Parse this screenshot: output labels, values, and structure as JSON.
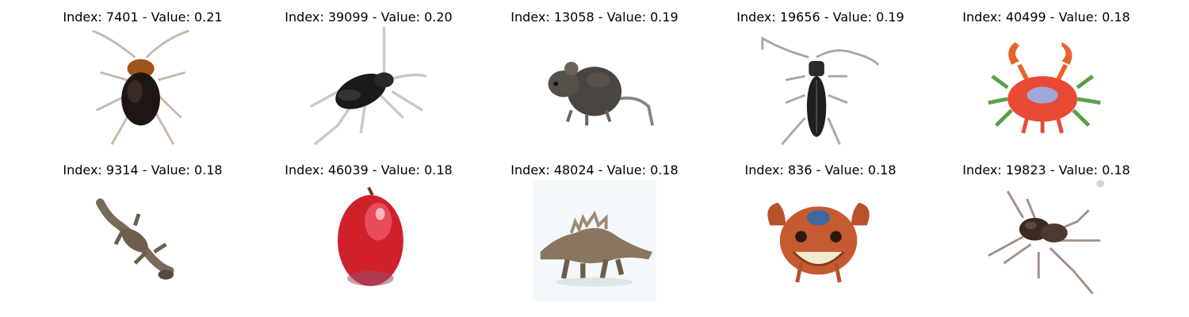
{
  "panels": [
    {
      "title": "Index: 7401 - Value: 0.21",
      "icon": "cockroach-icon"
    },
    {
      "title": "Index: 39099 - Value: 0.20",
      "icon": "beetle-icon"
    },
    {
      "title": "Index: 13058 - Value: 0.19",
      "icon": "rodent-icon"
    },
    {
      "title": "Index: 19656 - Value: 0.19",
      "icon": "longhorn-beetle-icon"
    },
    {
      "title": "Index: 40499 - Value: 0.18",
      "icon": "crab-icon"
    },
    {
      "title": "Index: 9314 - Value: 0.18",
      "icon": "lizard-icon"
    },
    {
      "title": "Index: 46039 - Value: 0.18",
      "icon": "apple-icon"
    },
    {
      "title": "Index: 48024 - Value: 0.18",
      "icon": "dinosaur-icon"
    },
    {
      "title": "Index: 836 - Value: 0.18",
      "icon": "crab-face-icon"
    },
    {
      "title": "Index: 19823 - Value: 0.18",
      "icon": "spider-icon"
    }
  ],
  "colors": {
    "background": "#ffffff",
    "text": "#000000"
  }
}
